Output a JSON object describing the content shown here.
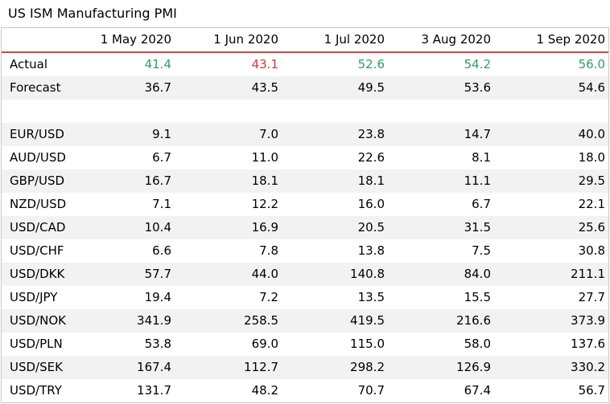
{
  "title": "US ISM Manufacturing PMI",
  "colors": {
    "positive": "#2e9e68",
    "negative": "#d33a3a",
    "header_rule": "#c0504d",
    "stripe": "#f2f2f2"
  },
  "columns": [
    "",
    "1 May 2020",
    "1 Jun 2020",
    "1 Jul 2020",
    "3 Aug 2020",
    "1 Sep 2020"
  ],
  "actual": {
    "label": "Actual",
    "values": [
      "41.4",
      "43.1",
      "52.6",
      "54.2",
      "56.0"
    ]
  },
  "forecast": {
    "label": "Forecast",
    "values": [
      "36.7",
      "43.5",
      "49.5",
      "53.6",
      "54.6"
    ]
  },
  "pairs": [
    {
      "label": "EUR/USD",
      "values": [
        "9.1",
        "7.0",
        "23.8",
        "14.7",
        "40.0"
      ]
    },
    {
      "label": "AUD/USD",
      "values": [
        "6.7",
        "11.0",
        "22.6",
        "8.1",
        "18.0"
      ]
    },
    {
      "label": "GBP/USD",
      "values": [
        "16.7",
        "18.1",
        "18.1",
        "11.1",
        "29.5"
      ]
    },
    {
      "label": "NZD/USD",
      "values": [
        "7.1",
        "12.2",
        "16.0",
        "6.7",
        "22.1"
      ]
    },
    {
      "label": "USD/CAD",
      "values": [
        "10.4",
        "16.9",
        "20.5",
        "31.5",
        "25.6"
      ]
    },
    {
      "label": "USD/CHF",
      "values": [
        "6.6",
        "7.8",
        "13.8",
        "7.5",
        "30.8"
      ]
    },
    {
      "label": "USD/DKK",
      "values": [
        "57.7",
        "44.0",
        "140.8",
        "84.0",
        "211.1"
      ]
    },
    {
      "label": "USD/JPY",
      "values": [
        "19.4",
        "7.2",
        "13.5",
        "15.5",
        "27.7"
      ]
    },
    {
      "label": "USD/NOK",
      "values": [
        "341.9",
        "258.5",
        "419.5",
        "216.6",
        "373.9"
      ]
    },
    {
      "label": "USD/PLN",
      "values": [
        "53.8",
        "69.0",
        "115.0",
        "58.0",
        "137.6"
      ]
    },
    {
      "label": "USD/SEK",
      "values": [
        "167.4",
        "112.7",
        "298.2",
        "126.9",
        "330.2"
      ]
    },
    {
      "label": "USD/TRY",
      "values": [
        "131.7",
        "48.2",
        "70.7",
        "67.4",
        "56.7"
      ]
    }
  ]
}
